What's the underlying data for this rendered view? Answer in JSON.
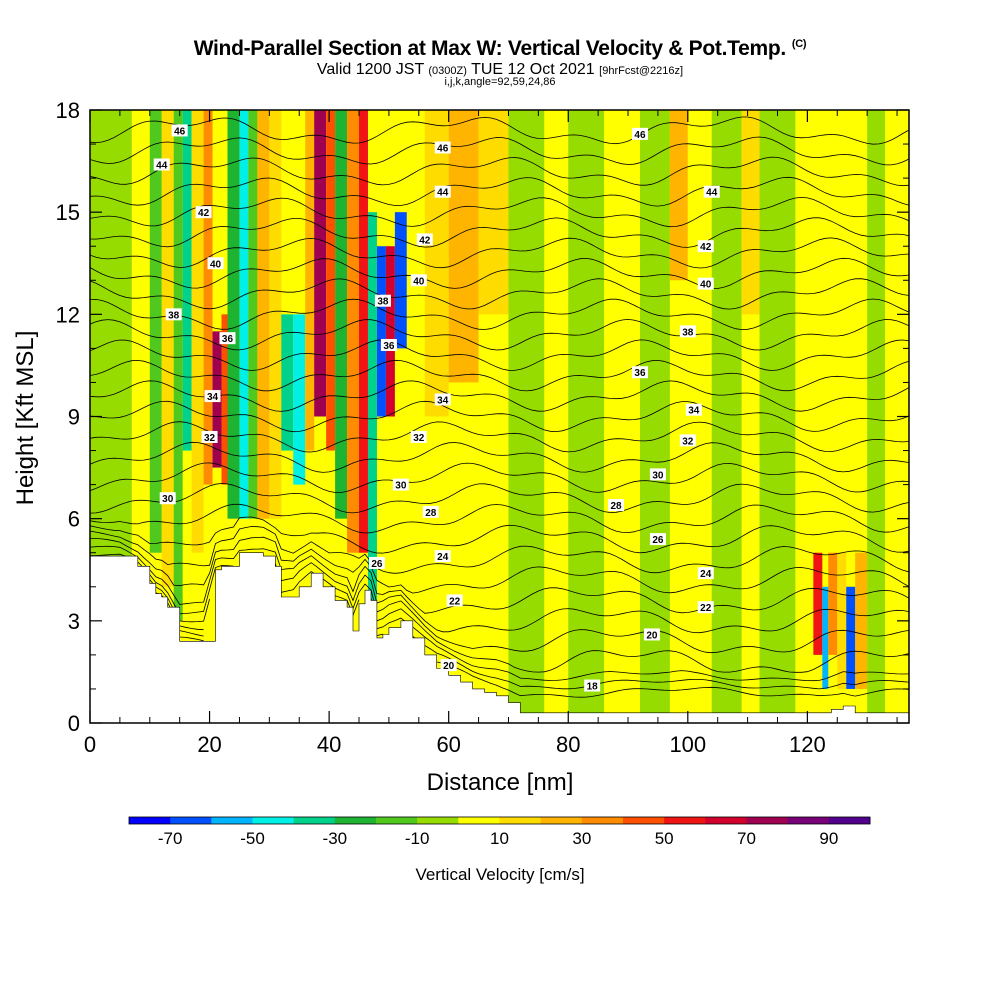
{
  "header": {
    "title": "Wind-Parallel Section at Max W: Vertical Velocity & Pot.Temp.",
    "copyright": "(C)",
    "subtitle_main": "Valid 1200 JST",
    "subtitle_utc": "(0300Z)",
    "subtitle_date": "TUE 12 Oct 2021",
    "subtitle_fcst": "[9hrFcst@2216z]",
    "indices": "i,j,k,angle=92,59,24,86"
  },
  "chart_data": {
    "type": "heatmap",
    "xlabel": "Distance [nm]",
    "ylabel": "Height [Kft MSL]",
    "xlim": [
      0,
      137
    ],
    "ylim": [
      0,
      18
    ],
    "x_ticks": [
      "0",
      "20",
      "40",
      "60",
      "80",
      "100",
      "120"
    ],
    "y_ticks": [
      "0",
      "3",
      "6",
      "9",
      "12",
      "15",
      "18"
    ],
    "terrain": {
      "x": [
        0,
        5,
        8,
        10,
        11,
        12,
        13,
        15,
        17,
        19,
        21,
        22,
        24,
        25,
        27,
        29,
        31,
        32,
        34,
        35,
        37,
        39,
        41,
        43,
        44,
        45,
        46,
        47,
        48,
        49,
        50,
        52,
        54,
        56,
        58,
        60,
        62,
        64,
        66,
        68,
        70,
        72,
        80,
        100,
        115,
        120,
        122,
        124,
        126,
        128,
        130,
        135,
        137
      ],
      "h": [
        4.9,
        4.9,
        4.6,
        4.1,
        3.8,
        3.7,
        3.4,
        2.4,
        2.4,
        2.4,
        4.5,
        4.6,
        4.6,
        5.0,
        5.0,
        4.9,
        4.6,
        3.7,
        3.7,
        4.0,
        4.4,
        4.0,
        3.6,
        3.4,
        2.7,
        3.5,
        3.9,
        3.6,
        2.5,
        2.6,
        2.8,
        3.0,
        2.5,
        2.0,
        1.6,
        1.4,
        1.2,
        1.0,
        0.9,
        0.8,
        0.6,
        0.3,
        0.3,
        0.3,
        0.3,
        0.3,
        0.3,
        0.4,
        0.5,
        0.3,
        0.3,
        0.3,
        0.3
      ]
    },
    "theta_labels": [
      {
        "x": 15,
        "y": 17.4,
        "label": "46"
      },
      {
        "x": 12,
        "y": 16.4,
        "label": "44"
      },
      {
        "x": 19,
        "y": 15.0,
        "label": "42"
      },
      {
        "x": 21,
        "y": 13.5,
        "label": "40"
      },
      {
        "x": 14,
        "y": 12.0,
        "label": "38"
      },
      {
        "x": 23,
        "y": 11.3,
        "label": "36"
      },
      {
        "x": 20.5,
        "y": 9.6,
        "label": "34"
      },
      {
        "x": 20,
        "y": 8.4,
        "label": "32"
      },
      {
        "x": 13,
        "y": 6.6,
        "label": "30"
      },
      {
        "x": 59,
        "y": 16.9,
        "label": "46"
      },
      {
        "x": 59,
        "y": 15.6,
        "label": "44"
      },
      {
        "x": 56,
        "y": 14.2,
        "label": "42"
      },
      {
        "x": 55,
        "y": 13.0,
        "label": "40"
      },
      {
        "x": 49,
        "y": 12.4,
        "label": "38"
      },
      {
        "x": 50,
        "y": 11.1,
        "label": "36"
      },
      {
        "x": 59,
        "y": 9.5,
        "label": "34"
      },
      {
        "x": 55,
        "y": 8.4,
        "label": "32"
      },
      {
        "x": 52,
        "y": 7.0,
        "label": "30"
      },
      {
        "x": 57,
        "y": 6.2,
        "label": "28"
      },
      {
        "x": 48,
        "y": 4.7,
        "label": "26"
      },
      {
        "x": 59,
        "y": 4.9,
        "label": "24"
      },
      {
        "x": 61,
        "y": 3.6,
        "label": "22"
      },
      {
        "x": 60,
        "y": 1.7,
        "label": "20"
      },
      {
        "x": 84,
        "y": 1.1,
        "label": "18"
      },
      {
        "x": 92,
        "y": 17.3,
        "label": "46"
      },
      {
        "x": 104,
        "y": 15.6,
        "label": "44"
      },
      {
        "x": 103,
        "y": 14.0,
        "label": "42"
      },
      {
        "x": 103,
        "y": 12.9,
        "label": "40"
      },
      {
        "x": 100,
        "y": 11.5,
        "label": "38"
      },
      {
        "x": 92,
        "y": 10.3,
        "label": "36"
      },
      {
        "x": 101,
        "y": 9.2,
        "label": "34"
      },
      {
        "x": 100,
        "y": 8.3,
        "label": "32"
      },
      {
        "x": 95,
        "y": 7.3,
        "label": "30"
      },
      {
        "x": 88,
        "y": 6.4,
        "label": "28"
      },
      {
        "x": 95,
        "y": 5.4,
        "label": "26"
      },
      {
        "x": 103,
        "y": 4.4,
        "label": "24"
      },
      {
        "x": 103,
        "y": 3.4,
        "label": "22"
      },
      {
        "x": 94,
        "y": 2.6,
        "label": "20"
      }
    ],
    "colorbar": {
      "title": "Vertical Velocity [cm/s]",
      "labels": [
        "-70",
        "-50",
        "-30",
        "-10",
        "10",
        "30",
        "50",
        "70",
        "90"
      ],
      "colors": [
        "#0000ff",
        "#0050ff",
        "#00b4ff",
        "#00f0e6",
        "#00d28c",
        "#1eb432",
        "#50c81e",
        "#96dc00",
        "#ffff00",
        "#ffdc00",
        "#ffb400",
        "#ff8c00",
        "#ff5000",
        "#f01414",
        "#d2002d",
        "#a00050",
        "#780078",
        "#50008c"
      ]
    },
    "cells": [
      {
        "x0": 0,
        "x1": 7,
        "y0": 0,
        "y1": 18,
        "w": -5
      },
      {
        "x0": 7,
        "x1": 10,
        "y0": 5,
        "y1": 18,
        "w": 8
      },
      {
        "x0": 10,
        "x1": 12,
        "y0": 5,
        "y1": 18,
        "w": -15
      },
      {
        "x0": 12,
        "x1": 14,
        "y0": 4,
        "y1": 18,
        "w": 10
      },
      {
        "x0": 14,
        "x1": 15.5,
        "y0": 3,
        "y1": 18,
        "w": -20
      },
      {
        "x0": 15.5,
        "x1": 17,
        "y0": 8,
        "y1": 18,
        "w": -35
      },
      {
        "x0": 17,
        "x1": 19,
        "y0": 5,
        "y1": 18,
        "w": 15
      },
      {
        "x0": 19,
        "x1": 20.5,
        "y0": 7,
        "y1": 18,
        "w": 30
      },
      {
        "x0": 20.5,
        "x1": 22,
        "y0": 7.5,
        "y1": 11.5,
        "w": 70
      },
      {
        "x0": 22,
        "x1": 23,
        "y0": 7,
        "y1": 12,
        "w": 45
      },
      {
        "x0": 23,
        "x1": 25,
        "y0": 6,
        "y1": 18,
        "w": -25
      },
      {
        "x0": 25,
        "x1": 26.5,
        "y0": 6,
        "y1": 18,
        "w": -45
      },
      {
        "x0": 26.5,
        "x1": 28,
        "y0": 6,
        "y1": 18,
        "w": -20
      },
      {
        "x0": 28,
        "x1": 30,
        "y0": 6,
        "y1": 18,
        "w": 20
      },
      {
        "x0": 30,
        "x1": 32,
        "y0": 6,
        "y1": 18,
        "w": 12
      },
      {
        "x0": 32,
        "x1": 34,
        "y0": 8,
        "y1": 12,
        "w": -35
      },
      {
        "x0": 34,
        "x1": 36,
        "y0": 7,
        "y1": 12,
        "w": -50
      },
      {
        "x0": 36,
        "x1": 37.5,
        "y0": 8,
        "y1": 18,
        "w": 25
      },
      {
        "x0": 37.5,
        "x1": 39.5,
        "y0": 9,
        "y1": 18,
        "w": 75
      },
      {
        "x0": 39.5,
        "x1": 41,
        "y0": 8,
        "y1": 18,
        "w": 40
      },
      {
        "x0": 41,
        "x1": 43,
        "y0": 6,
        "y1": 18,
        "w": -30
      },
      {
        "x0": 43,
        "x1": 45,
        "y0": 5,
        "y1": 18,
        "w": 30
      },
      {
        "x0": 45,
        "x1": 46.5,
        "y0": 5,
        "y1": 18,
        "w": 55
      },
      {
        "x0": 46.5,
        "x1": 48,
        "y0": 3,
        "y1": 15,
        "w": -40
      },
      {
        "x0": 48,
        "x1": 49.5,
        "y0": 9,
        "y1": 14,
        "w": -65
      },
      {
        "x0": 49.5,
        "x1": 51,
        "y0": 9,
        "y1": 14,
        "w": 65
      },
      {
        "x0": 51,
        "x1": 53,
        "y0": 11,
        "y1": 15,
        "w": -70
      },
      {
        "x0": 53,
        "x1": 56,
        "y0": 8,
        "y1": 18,
        "w": 5
      },
      {
        "x0": 56,
        "x1": 60,
        "y0": 9,
        "y1": 18,
        "w": 18
      },
      {
        "x0": 60,
        "x1": 65,
        "y0": 10,
        "y1": 18,
        "w": 22
      },
      {
        "x0": 65,
        "x1": 70,
        "y0": 12,
        "y1": 18,
        "w": 16
      },
      {
        "x0": 70,
        "x1": 76,
        "y0": 0,
        "y1": 18,
        "w": -8
      },
      {
        "x0": 76,
        "x1": 80,
        "y0": 0,
        "y1": 18,
        "w": 4
      },
      {
        "x0": 80,
        "x1": 86,
        "y0": 0,
        "y1": 18,
        "w": -6
      },
      {
        "x0": 86,
        "x1": 92,
        "y0": 0,
        "y1": 18,
        "w": 5
      },
      {
        "x0": 92,
        "x1": 97,
        "y0": 0,
        "y1": 18,
        "w": -7
      },
      {
        "x0": 97,
        "x1": 100,
        "y0": 13,
        "y1": 18,
        "w": 25
      },
      {
        "x0": 100,
        "x1": 104,
        "y0": 0,
        "y1": 18,
        "w": 6
      },
      {
        "x0": 104,
        "x1": 109,
        "y0": 0,
        "y1": 18,
        "w": -5
      },
      {
        "x0": 109,
        "x1": 112,
        "y0": 12,
        "y1": 18,
        "w": 18
      },
      {
        "x0": 112,
        "x1": 118,
        "y0": 0,
        "y1": 18,
        "w": -6
      },
      {
        "x0": 118,
        "x1": 121,
        "y0": 0,
        "y1": 18,
        "w": 5
      },
      {
        "x0": 121,
        "x1": 122.5,
        "y0": 2,
        "y1": 5,
        "w": 55
      },
      {
        "x0": 122.5,
        "x1": 123.5,
        "y0": 1,
        "y1": 4,
        "w": -60
      },
      {
        "x0": 123.5,
        "x1": 125,
        "y0": 2,
        "y1": 5,
        "w": 35
      },
      {
        "x0": 125,
        "x1": 126.5,
        "y0": 1,
        "y1": 5,
        "w": 12
      },
      {
        "x0": 126.5,
        "x1": 128,
        "y0": 1,
        "y1": 4,
        "w": -65
      },
      {
        "x0": 128,
        "x1": 130,
        "y0": 1,
        "y1": 5,
        "w": 20
      },
      {
        "x0": 130,
        "x1": 133,
        "y0": 0,
        "y1": 18,
        "w": -10
      },
      {
        "x0": 133,
        "x1": 137,
        "y0": 0,
        "y1": 18,
        "w": 3
      }
    ]
  }
}
